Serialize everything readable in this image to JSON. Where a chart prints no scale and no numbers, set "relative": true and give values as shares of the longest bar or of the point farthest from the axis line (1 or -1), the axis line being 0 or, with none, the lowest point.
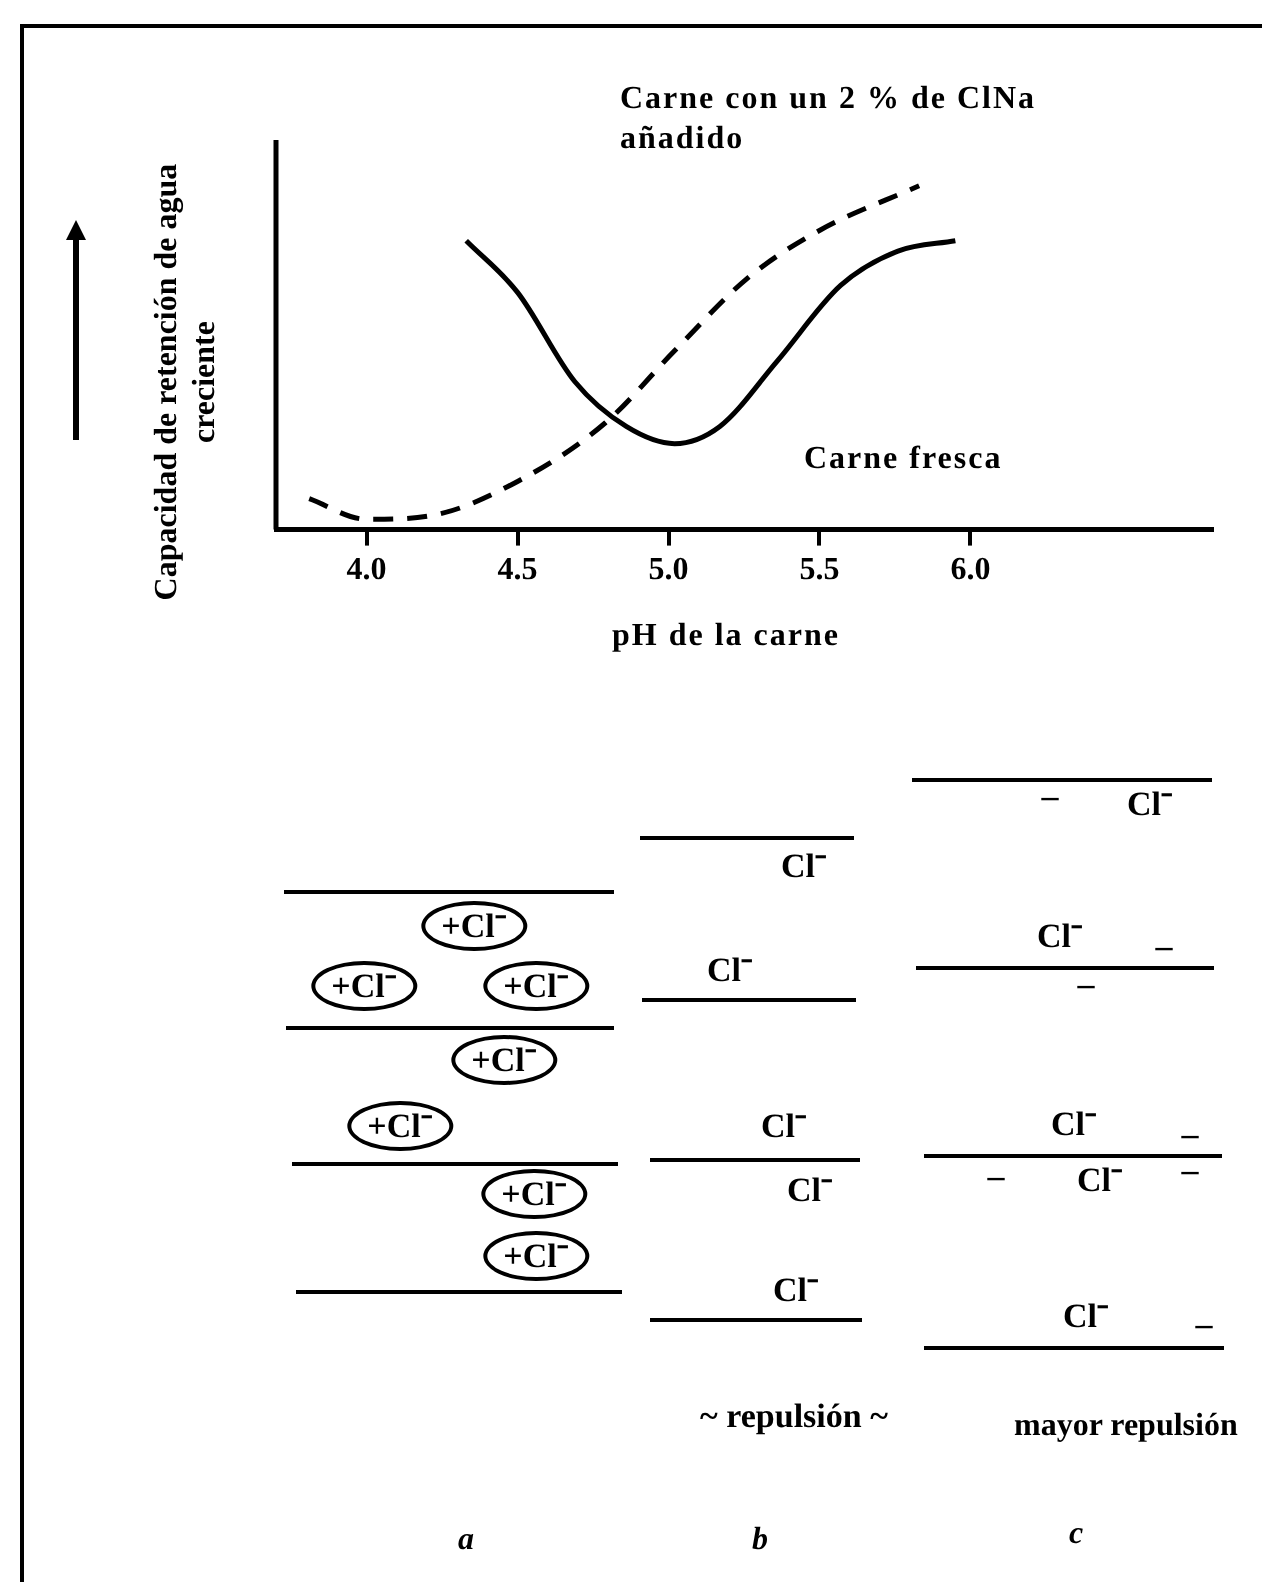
{
  "chart_data": {
    "type": "line",
    "relative": true,
    "xlabel": "pH de la carne",
    "ylabel": "Capacidad de retención de agua creciente",
    "xlim": [
      3.7,
      6.8
    ],
    "xticks": [
      {
        "value": 4,
        "label": "4.0"
      },
      {
        "value": 4.5,
        "label": "4.5"
      },
      {
        "value": 5,
        "label": "5.0"
      },
      {
        "value": 5.5,
        "label": "5.5"
      },
      {
        "value": 6,
        "label": "6.0"
      }
    ],
    "legend": false,
    "marker": "none",
    "series": [
      {
        "name": "Carne con un 2 % de ClNa añadido",
        "color": "#000000",
        "line_style": "dashed",
        "x": [
          3.81,
          4.0,
          4.21,
          4.5,
          4.79,
          5.02,
          5.26,
          5.5,
          5.83
        ],
        "values": [
          0.09,
          0.03,
          0.04,
          0.14,
          0.31,
          0.52,
          0.73,
          0.87,
          1.0
        ]
      },
      {
        "name": "Carne fresca",
        "color": "#000000",
        "line_style": "solid",
        "x": [
          4.33,
          4.5,
          4.69,
          4.86,
          5.02,
          5.17,
          5.36,
          5.57,
          5.76,
          5.95
        ],
        "values": [
          0.84,
          0.69,
          0.43,
          0.3,
          0.25,
          0.3,
          0.49,
          0.71,
          0.81,
          0.84
        ]
      }
    ],
    "annotations": [
      "+Cl⁻",
      "+Cl⁻",
      "+Cl⁻",
      "+Cl⁻",
      "+Cl⁻",
      "+Cl⁻",
      "+Cl⁻",
      "Cl⁻",
      "Cl⁻",
      "Cl⁻",
      "Cl⁻",
      "Cl⁻",
      "Cl⁻",
      "Cl⁻",
      "Cl⁻",
      "Cl⁻",
      "Cl⁻",
      "–",
      "–",
      "–",
      "–",
      "–",
      "–",
      "–",
      "~ repulsión ~",
      "mayor repulsión",
      "a",
      "b",
      "c"
    ]
  }
}
